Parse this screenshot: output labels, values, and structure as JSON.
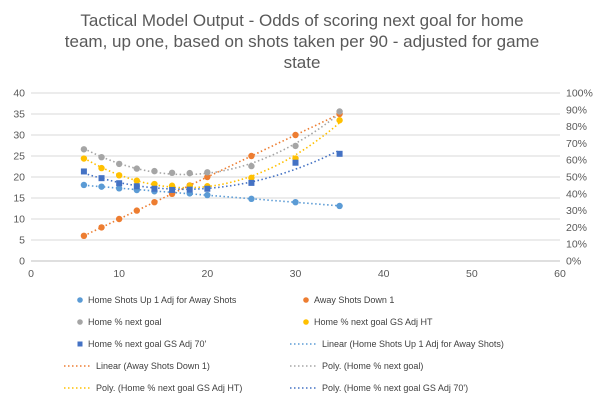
{
  "chart_data": {
    "type": "scatter",
    "title_lines": [
      "Tactical Model Output - Odds of scoring next goal for home",
      "team, up one, based on shots taken per 90 - adjusted for game",
      "state"
    ],
    "x_axis": {
      "range": [
        0,
        60
      ],
      "ticks": [
        0,
        10,
        20,
        30,
        40,
        50,
        60
      ]
    },
    "y_axis_left": {
      "range": [
        0,
        40
      ],
      "ticks": [
        0,
        5,
        10,
        15,
        20,
        25,
        30,
        35,
        40
      ]
    },
    "y_axis_right": {
      "range": [
        0,
        100
      ],
      "unit": "%",
      "ticks": [
        "0%",
        "10%",
        "20%",
        "30%",
        "40%",
        "50%",
        "60%",
        "70%",
        "80%",
        "90%",
        "100%"
      ]
    },
    "grid": "horizontal",
    "legend_position": "bottom",
    "series": [
      {
        "name": "Home Shots Up 1 Adj for Away Shots",
        "axis": "left",
        "color": "#5B9BD5",
        "marker": "circle",
        "points": [
          [
            6,
            18.1
          ],
          [
            8,
            17.7
          ],
          [
            10,
            17.3
          ],
          [
            12,
            16.9
          ],
          [
            14,
            16.6
          ],
          [
            16,
            16.4
          ],
          [
            18,
            16.1
          ],
          [
            20,
            15.7
          ],
          [
            25,
            14.8
          ],
          [
            30,
            14.0
          ],
          [
            35,
            13.1
          ]
        ]
      },
      {
        "name": "Away Shots Down 1",
        "axis": "left",
        "color": "#ED7D31",
        "marker": "circle",
        "points": [
          [
            6,
            6
          ],
          [
            8,
            8
          ],
          [
            10,
            10
          ],
          [
            12,
            12
          ],
          [
            14,
            14
          ],
          [
            16,
            16
          ],
          [
            18,
            18
          ],
          [
            20,
            20
          ],
          [
            25,
            25
          ],
          [
            30,
            30
          ],
          [
            35,
            35
          ]
        ]
      },
      {
        "name": "Home % next goal",
        "axis": "right",
        "color": "#A5A5A5",
        "marker": "circle",
        "points": [
          [
            6,
            66.5
          ],
          [
            8,
            61.8
          ],
          [
            10,
            57.8
          ],
          [
            12,
            55.0
          ],
          [
            14,
            53.5
          ],
          [
            16,
            52.5
          ],
          [
            18,
            52.3
          ],
          [
            20,
            52.8
          ],
          [
            25,
            56.5
          ],
          [
            30,
            68.5
          ],
          [
            35,
            89.0
          ]
        ]
      },
      {
        "name": "Home % next goal GS Adj HT",
        "axis": "right",
        "color": "#FFC000",
        "marker": "circle",
        "points": [
          [
            6,
            61.0
          ],
          [
            8,
            55.3
          ],
          [
            10,
            51.0
          ],
          [
            12,
            47.8
          ],
          [
            14,
            45.8
          ],
          [
            16,
            44.8
          ],
          [
            18,
            44.8
          ],
          [
            20,
            44.5
          ],
          [
            25,
            49.5
          ],
          [
            30,
            61.0
          ],
          [
            35,
            83.8
          ]
        ]
      },
      {
        "name": "Home % next goal GS Adj 70'",
        "axis": "right",
        "color": "#4472C4",
        "marker": "square",
        "points": [
          [
            6,
            53.3
          ],
          [
            8,
            49.3
          ],
          [
            10,
            46.3
          ],
          [
            12,
            44.5
          ],
          [
            14,
            43.0
          ],
          [
            16,
            42.3
          ],
          [
            18,
            42.5
          ],
          [
            20,
            43.0
          ],
          [
            25,
            46.5
          ],
          [
            30,
            58.5
          ],
          [
            35,
            63.8
          ]
        ]
      }
    ],
    "trendlines": [
      {
        "name": "Linear (Home Shots Up 1 Adj for Away Shots)",
        "of": 0,
        "kind": "linear",
        "color": "#5B9BD5"
      },
      {
        "name": "Linear (Away Shots Down 1)",
        "of": 1,
        "kind": "linear",
        "color": "#ED7D31"
      },
      {
        "name": "Poly. (Home % next goal)",
        "of": 2,
        "kind": "poly",
        "color": "#A5A5A5"
      },
      {
        "name": "Poly. (Home % next goal GS Adj HT)",
        "of": 3,
        "kind": "poly",
        "color": "#FFC000"
      },
      {
        "name": "Poly. (Home % next goal GS Adj 70')",
        "of": 4,
        "kind": "poly",
        "color": "#4472C4"
      }
    ],
    "legend": [
      {
        "text": "Home Shots Up 1 Adj for Away Shots",
        "type": "circle",
        "color": "#5B9BD5"
      },
      {
        "text": "Away Shots Down 1",
        "type": "circle",
        "color": "#ED7D31"
      },
      {
        "text": "Home % next goal",
        "type": "circle",
        "color": "#A5A5A5"
      },
      {
        "text": "Home % next goal GS Adj HT",
        "type": "circle",
        "color": "#FFC000"
      },
      {
        "text": "Home % next goal GS Adj 70'",
        "type": "square",
        "color": "#4472C4"
      },
      {
        "text": "Linear (Home Shots Up 1 Adj for Away Shots)",
        "type": "line",
        "color": "#5B9BD5"
      },
      {
        "text": "Linear (Away Shots Down 1)",
        "type": "line",
        "color": "#ED7D31"
      },
      {
        "text": "Poly. (Home % next goal)",
        "type": "line",
        "color": "#A5A5A5"
      },
      {
        "text": "Poly. (Home % next goal GS Adj HT)",
        "type": "line",
        "color": "#FFC000"
      },
      {
        "text": "Poly. (Home % next goal GS Adj 70')",
        "type": "line",
        "color": "#4472C4"
      }
    ]
  }
}
